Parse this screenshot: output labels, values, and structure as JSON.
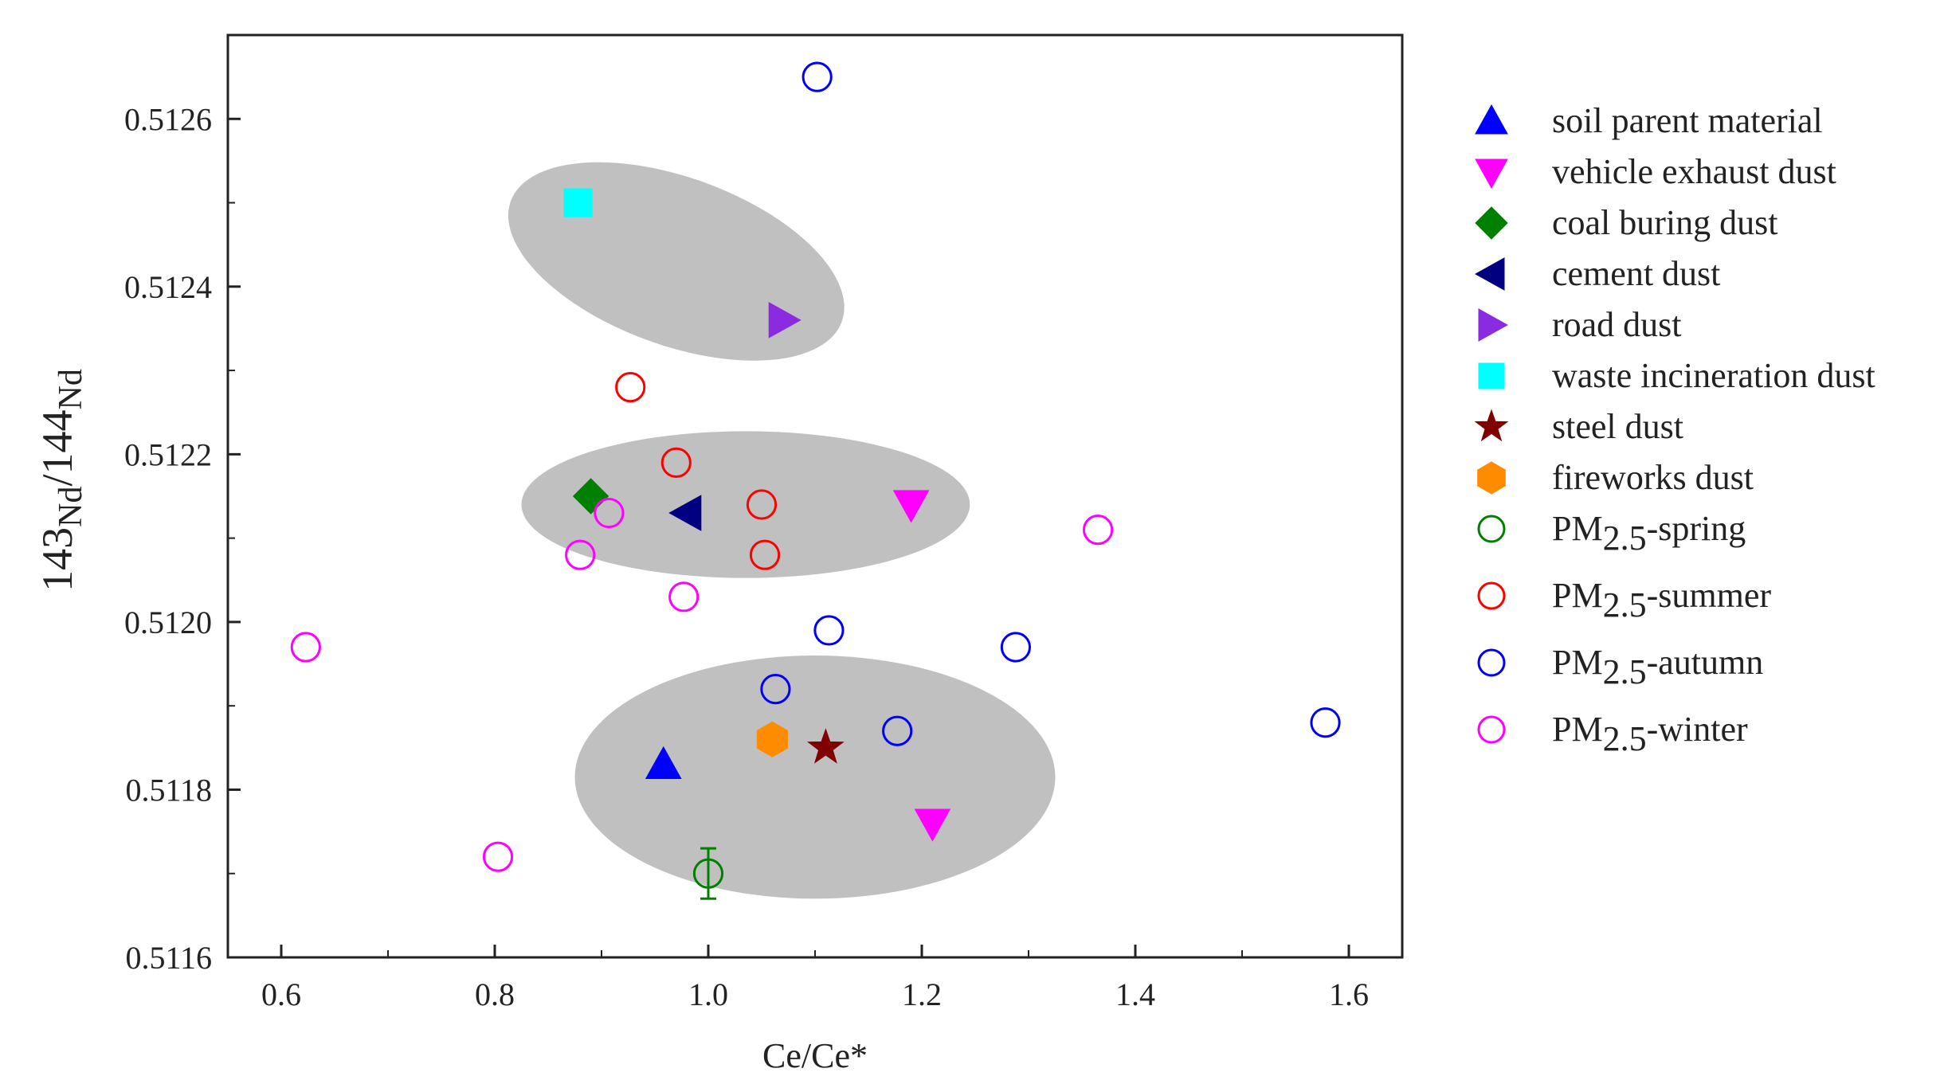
{
  "chart_data": {
    "type": "scatter",
    "title": "",
    "xlabel": "Ce/Ce*",
    "ylabel": {
      "base": "143",
      "sub": "Nd",
      "sep": "/",
      "base2": "144",
      "sub2": "Nd"
    },
    "xlim": [
      0.55,
      1.65
    ],
    "ylim": [
      0.5116,
      0.5127
    ],
    "xticks": [
      0.6,
      0.8,
      1.0,
      1.2,
      1.4,
      1.6
    ],
    "xtick_labels": [
      "0.6",
      "0.8",
      "1.0",
      "1.2",
      "1.4",
      "1.6"
    ],
    "yticks": [
      0.5116,
      0.5118,
      0.512,
      0.5122,
      0.5124,
      0.5126
    ],
    "ytick_labels": [
      "0.5116",
      "0.5118",
      "0.5120",
      "0.5122",
      "0.5124",
      "0.5126"
    ],
    "grid": false,
    "legend_position": "right",
    "ellipses": [
      {
        "name": "upper-cluster",
        "cx": 0.97,
        "cy": 0.51243,
        "rx": 0.165,
        "ry": 0.0001,
        "rotate_deg": 20,
        "color": "#c0c0c0"
      },
      {
        "name": "middle-cluster",
        "cx": 1.035,
        "cy": 0.51214,
        "rx": 0.21,
        "ry": 8.75e-05,
        "rotate_deg": 0,
        "color": "#c0c0c0"
      },
      {
        "name": "lower-cluster",
        "cx": 1.1,
        "cy": 0.511815,
        "rx": 0.225,
        "ry": 0.000145,
        "rotate_deg": 0,
        "color": "#c0c0c0"
      }
    ],
    "series": [
      {
        "name": "soil parent material",
        "marker": "triangle-up",
        "color": "#0000ff",
        "filled": true,
        "points": [
          {
            "x": 0.958,
            "y": 0.51183
          }
        ]
      },
      {
        "name": "vehicle exhaust dust",
        "marker": "triangle-down",
        "color": "#ff00ff",
        "filled": true,
        "points": [
          {
            "x": 1.19,
            "y": 0.51214
          },
          {
            "x": 1.21,
            "y": 0.51176
          }
        ]
      },
      {
        "name": "coal buring dust",
        "marker": "diamond",
        "color": "#008000",
        "filled": true,
        "points": [
          {
            "x": 0.89,
            "y": 0.51215
          }
        ]
      },
      {
        "name": "cement dust",
        "marker": "triangle-left",
        "color": "#000080",
        "filled": true,
        "points": [
          {
            "x": 0.98,
            "y": 0.51213
          }
        ]
      },
      {
        "name": "road dust",
        "marker": "triangle-right",
        "color": "#8a2be2",
        "filled": true,
        "points": [
          {
            "x": 1.07,
            "y": 0.51236
          }
        ]
      },
      {
        "name": "waste incineration dust",
        "marker": "square",
        "color": "#00ffff",
        "filled": true,
        "points": [
          {
            "x": 0.878,
            "y": 0.5125
          }
        ]
      },
      {
        "name": "steel dust",
        "marker": "star",
        "color": "#800000",
        "filled": true,
        "points": [
          {
            "x": 1.11,
            "y": 0.51185
          }
        ]
      },
      {
        "name": "fireworks dust",
        "marker": "hexagon",
        "color": "#ff8c00",
        "filled": true,
        "points": [
          {
            "x": 1.06,
            "y": 0.51186
          }
        ]
      },
      {
        "name": "PM2.5-spring",
        "label_parts": [
          "PM",
          "2.5",
          "-spring"
        ],
        "marker": "circle",
        "color": "#008000",
        "filled": false,
        "points": [
          {
            "x": 1.0,
            "y": 0.5117,
            "err": 3e-05
          }
        ]
      },
      {
        "name": "PM2.5-summer",
        "label_parts": [
          "PM",
          "2.5",
          "-summer"
        ],
        "marker": "circle",
        "color": "#ff0000",
        "filled": false,
        "points": [
          {
            "x": 0.927,
            "y": 0.51228
          },
          {
            "x": 0.97,
            "y": 0.51219
          },
          {
            "x": 1.05,
            "y": 0.51214
          },
          {
            "x": 1.053,
            "y": 0.51208
          }
        ]
      },
      {
        "name": "PM2.5-autumn",
        "label_parts": [
          "PM",
          "2.5",
          "-autumn"
        ],
        "marker": "circle",
        "color": "#0000ff",
        "filled": false,
        "points": [
          {
            "x": 1.102,
            "y": 0.51265
          },
          {
            "x": 1.113,
            "y": 0.51199
          },
          {
            "x": 1.063,
            "y": 0.51192
          },
          {
            "x": 1.177,
            "y": 0.51187
          },
          {
            "x": 1.288,
            "y": 0.51197
          },
          {
            "x": 1.578,
            "y": 0.51188
          }
        ]
      },
      {
        "name": "PM2.5-winter",
        "label_parts": [
          "PM",
          "2.5",
          "-winter"
        ],
        "marker": "circle",
        "color": "#ff00ff",
        "filled": false,
        "points": [
          {
            "x": 0.623,
            "y": 0.51197
          },
          {
            "x": 0.803,
            "y": 0.51172
          },
          {
            "x": 0.88,
            "y": 0.51208
          },
          {
            "x": 0.907,
            "y": 0.51213
          },
          {
            "x": 0.977,
            "y": 0.51203
          },
          {
            "x": 1.365,
            "y": 0.51211
          }
        ]
      }
    ]
  }
}
